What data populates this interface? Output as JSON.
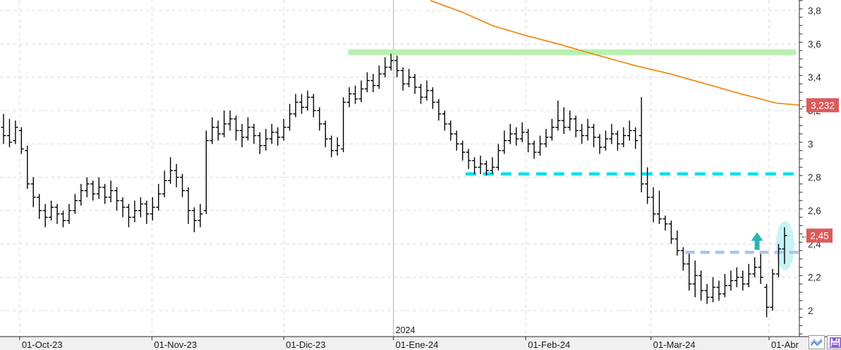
{
  "chart_data": {
    "type": "ohlc_bar",
    "title": "",
    "xlabel": "",
    "ylabel": "",
    "x_ticks": [
      {
        "label": "01-Oct-23",
        "index": 2.7
      },
      {
        "label": "01-Nov-23",
        "index": 24.9
      },
      {
        "label": "01-Dic-23",
        "index": 47.0
      },
      {
        "label": "01-Ene-24",
        "index": 65.4
      },
      {
        "label": "01-Feb-24",
        "index": 87.6
      },
      {
        "label": "01-Mar-24",
        "index": 108.6
      },
      {
        "label": "01-Abr",
        "index": 128.4
      }
    ],
    "year_divider": {
      "label": "2024",
      "index": 65.4
    },
    "y_ticks": [
      {
        "label": "3,8",
        "value": 3.8
      },
      {
        "label": "3,6",
        "value": 3.6
      },
      {
        "label": "3,4",
        "value": 3.4
      },
      {
        "label": "3,2",
        "value": 3.2
      },
      {
        "label": "3",
        "value": 3.0
      },
      {
        "label": "2,8",
        "value": 2.8
      },
      {
        "label": "2,6",
        "value": 2.6
      },
      {
        "label": "2,4",
        "value": 2.4
      },
      {
        "label": "2,2",
        "value": 2.2
      },
      {
        "label": "2",
        "value": 2.0
      }
    ],
    "y_minor_step": 0.05,
    "y_range": [
      1.86,
      3.86
    ],
    "grid": true,
    "bars_ohlc": [
      [
        3.1,
        3.18,
        3.0,
        3.05
      ],
      [
        3.05,
        3.15,
        2.98,
        3.01
      ],
      [
        3.02,
        3.14,
        3.0,
        3.1
      ],
      [
        3.08,
        3.1,
        2.94,
        2.97
      ],
      [
        2.96,
        2.99,
        2.73,
        2.76
      ],
      [
        2.76,
        2.8,
        2.62,
        2.68
      ],
      [
        2.68,
        2.7,
        2.55,
        2.6
      ],
      [
        2.6,
        2.64,
        2.5,
        2.56
      ],
      [
        2.56,
        2.66,
        2.54,
        2.62
      ],
      [
        2.62,
        2.64,
        2.52,
        2.58
      ],
      [
        2.58,
        2.6,
        2.5,
        2.54
      ],
      [
        2.54,
        2.64,
        2.52,
        2.6
      ],
      [
        2.6,
        2.7,
        2.58,
        2.66
      ],
      [
        2.66,
        2.76,
        2.63,
        2.72
      ],
      [
        2.72,
        2.8,
        2.68,
        2.76
      ],
      [
        2.76,
        2.78,
        2.66,
        2.7
      ],
      [
        2.7,
        2.8,
        2.67,
        2.74
      ],
      [
        2.74,
        2.76,
        2.64,
        2.68
      ],
      [
        2.68,
        2.78,
        2.65,
        2.72
      ],
      [
        2.72,
        2.74,
        2.6,
        2.66
      ],
      [
        2.66,
        2.68,
        2.56,
        2.62
      ],
      [
        2.62,
        2.64,
        2.5,
        2.56
      ],
      [
        2.56,
        2.66,
        2.53,
        2.6
      ],
      [
        2.6,
        2.68,
        2.56,
        2.64
      ],
      [
        2.64,
        2.66,
        2.52,
        2.58
      ],
      [
        2.58,
        2.68,
        2.54,
        2.62
      ],
      [
        2.62,
        2.76,
        2.6,
        2.7
      ],
      [
        2.7,
        2.84,
        2.68,
        2.78
      ],
      [
        2.78,
        2.92,
        2.76,
        2.84
      ],
      [
        2.84,
        2.88,
        2.74,
        2.8
      ],
      [
        2.8,
        2.82,
        2.68,
        2.72
      ],
      [
        2.72,
        2.74,
        2.52,
        2.6
      ],
      [
        2.6,
        2.62,
        2.47,
        2.54
      ],
      [
        2.54,
        2.64,
        2.5,
        2.58
      ],
      [
        2.6,
        3.08,
        2.58,
        3.02
      ],
      [
        3.02,
        3.16,
        3.0,
        3.1
      ],
      [
        3.1,
        3.14,
        3.02,
        3.06
      ],
      [
        3.06,
        3.2,
        3.04,
        3.12
      ],
      [
        3.12,
        3.2,
        3.08,
        3.15
      ],
      [
        3.15,
        3.17,
        3.02,
        3.08
      ],
      [
        3.08,
        3.12,
        2.98,
        3.04
      ],
      [
        3.04,
        3.16,
        3.02,
        3.1
      ],
      [
        3.1,
        3.12,
        3.0,
        3.05
      ],
      [
        3.05,
        3.07,
        2.94,
        2.99
      ],
      [
        2.99,
        3.09,
        2.96,
        3.03
      ],
      [
        3.03,
        3.12,
        3.0,
        3.07
      ],
      [
        3.07,
        3.1,
        2.99,
        3.04
      ],
      [
        3.04,
        3.15,
        3.02,
        3.1
      ],
      [
        3.1,
        3.24,
        3.08,
        3.18
      ],
      [
        3.18,
        3.3,
        3.16,
        3.25
      ],
      [
        3.25,
        3.3,
        3.18,
        3.22
      ],
      [
        3.22,
        3.32,
        3.2,
        3.28
      ],
      [
        3.28,
        3.3,
        3.16,
        3.2
      ],
      [
        3.2,
        3.22,
        3.08,
        3.12
      ],
      [
        3.12,
        3.14,
        2.98,
        3.03
      ],
      [
        3.03,
        3.05,
        2.92,
        2.96
      ],
      [
        2.96,
        3.04,
        2.93,
        2.99
      ],
      [
        2.97,
        3.28,
        2.95,
        3.25
      ],
      [
        3.25,
        3.34,
        3.22,
        3.3
      ],
      [
        3.3,
        3.35,
        3.24,
        3.27
      ],
      [
        3.27,
        3.38,
        3.25,
        3.33
      ],
      [
        3.33,
        3.43,
        3.31,
        3.38
      ],
      [
        3.38,
        3.42,
        3.31,
        3.35
      ],
      [
        3.35,
        3.47,
        3.33,
        3.42
      ],
      [
        3.42,
        3.52,
        3.4,
        3.46
      ],
      [
        3.46,
        3.54,
        3.44,
        3.5
      ],
      [
        3.5,
        3.53,
        3.4,
        3.44
      ],
      [
        3.44,
        3.46,
        3.32,
        3.36
      ],
      [
        3.36,
        3.45,
        3.34,
        3.4
      ],
      [
        3.4,
        3.42,
        3.3,
        3.34
      ],
      [
        3.34,
        3.36,
        3.24,
        3.28
      ],
      [
        3.28,
        3.38,
        3.26,
        3.32
      ],
      [
        3.32,
        3.34,
        3.21,
        3.25
      ],
      [
        3.25,
        3.27,
        3.14,
        3.18
      ],
      [
        3.18,
        3.2,
        3.08,
        3.12
      ],
      [
        3.12,
        3.14,
        3.02,
        3.06
      ],
      [
        3.06,
        3.08,
        2.96,
        3.0
      ],
      [
        3.0,
        3.02,
        2.9,
        2.95
      ],
      [
        2.95,
        2.97,
        2.85,
        2.9
      ],
      [
        2.9,
        2.92,
        2.82,
        2.86
      ],
      [
        2.86,
        2.93,
        2.82,
        2.88
      ],
      [
        2.88,
        2.9,
        2.81,
        2.84
      ],
      [
        2.84,
        2.92,
        2.82,
        2.86
      ],
      [
        2.86,
        3.0,
        2.84,
        2.96
      ],
      [
        2.96,
        3.08,
        2.94,
        3.02
      ],
      [
        3.02,
        3.12,
        3.0,
        3.06
      ],
      [
        3.06,
        3.1,
        2.99,
        3.03
      ],
      [
        3.03,
        3.13,
        3.01,
        3.07
      ],
      [
        3.07,
        3.09,
        2.95,
        3.0
      ],
      [
        3.0,
        3.02,
        2.91,
        2.95
      ],
      [
        2.95,
        3.05,
        2.93,
        3.0
      ],
      [
        3.0,
        3.09,
        2.98,
        3.04
      ],
      [
        3.04,
        3.15,
        3.02,
        3.1
      ],
      [
        3.1,
        3.26,
        3.08,
        3.14
      ],
      [
        3.14,
        3.22,
        3.06,
        3.1
      ],
      [
        3.1,
        3.2,
        3.08,
        3.15
      ],
      [
        3.15,
        3.17,
        3.04,
        3.08
      ],
      [
        3.08,
        3.12,
        3.0,
        3.05
      ],
      [
        3.05,
        3.15,
        3.02,
        3.1
      ],
      [
        3.1,
        3.12,
        2.98,
        3.04
      ],
      [
        3.04,
        3.06,
        2.94,
        2.98
      ],
      [
        2.98,
        3.08,
        2.96,
        3.03
      ],
      [
        3.03,
        3.12,
        3.0,
        3.06
      ],
      [
        3.06,
        3.08,
        2.96,
        3.0
      ],
      [
        3.0,
        3.1,
        2.98,
        3.05
      ],
      [
        3.05,
        3.14,
        3.02,
        3.08
      ],
      [
        3.08,
        3.1,
        2.97,
        3.02
      ],
      [
        3.05,
        3.28,
        2.71,
        2.76
      ],
      [
        2.76,
        2.86,
        2.64,
        2.68
      ],
      [
        2.68,
        2.74,
        2.53,
        2.58
      ],
      [
        2.58,
        2.72,
        2.52,
        2.55
      ],
      [
        2.55,
        2.57,
        2.48,
        2.52
      ],
      [
        2.52,
        2.54,
        2.4,
        2.43
      ],
      [
        2.43,
        2.48,
        2.33,
        2.36
      ],
      [
        2.36,
        2.38,
        2.24,
        2.28
      ],
      [
        2.28,
        2.34,
        2.12,
        2.16
      ],
      [
        2.16,
        2.3,
        2.08,
        2.21
      ],
      [
        2.21,
        2.24,
        2.06,
        2.12
      ],
      [
        2.12,
        2.16,
        2.04,
        2.08
      ],
      [
        2.08,
        2.2,
        2.05,
        2.14
      ],
      [
        2.14,
        2.18,
        2.06,
        2.1
      ],
      [
        2.1,
        2.22,
        2.08,
        2.15
      ],
      [
        2.15,
        2.24,
        2.12,
        2.18
      ],
      [
        2.18,
        2.26,
        2.14,
        2.2
      ],
      [
        2.2,
        2.24,
        2.12,
        2.16
      ],
      [
        2.16,
        2.28,
        2.14,
        2.22
      ],
      [
        2.22,
        2.32,
        2.2,
        2.26
      ],
      [
        2.26,
        2.34,
        2.16,
        2.2
      ],
      [
        2.14,
        2.16,
        1.96,
        2.02
      ],
      [
        2.02,
        2.25,
        2.0,
        2.22
      ],
      [
        2.22,
        2.4,
        2.2,
        2.37
      ],
      [
        2.37,
        2.5,
        2.28,
        2.45
      ]
    ],
    "overlays": {
      "moving_average": {
        "name": "descending-ma-line",
        "color": "#ee8c1a",
        "points": [
          [
            71.6,
            3.86
          ],
          [
            77.0,
            3.79
          ],
          [
            82.0,
            3.71
          ],
          [
            87.6,
            3.65
          ],
          [
            93.0,
            3.6
          ],
          [
            98.8,
            3.54
          ],
          [
            105.9,
            3.47
          ],
          [
            111.8,
            3.42
          ],
          [
            117.8,
            3.36
          ],
          [
            123.7,
            3.3
          ],
          [
            129.6,
            3.245
          ],
          [
            133.6,
            3.232
          ]
        ]
      },
      "resistance_band": {
        "price": 3.55,
        "from_index": 57.8,
        "to_index": 132.9,
        "color": "#b6f1b0",
        "thickness": 8
      },
      "support_line_cyan": {
        "price": 2.82,
        "from_index": 77.5,
        "to_index": 133.5,
        "color": "#00dff0",
        "style": "dashed"
      },
      "support_line_blue": {
        "price": 2.35,
        "from_index": 114.4,
        "to_index": 133.5,
        "color": "#a9c6e9",
        "style": "dashed"
      },
      "up_arrow": {
        "index": 126.4,
        "price": 2.415,
        "color": "#2ab5ac"
      },
      "highlight_ellipse": {
        "index": 131.1,
        "price": 2.39,
        "rx": 13,
        "ry": 35,
        "color": "#c9f3f6"
      }
    },
    "price_labels": [
      {
        "text": "3,232",
        "value": 3.232,
        "bg": "#dc5a5a",
        "fg": "#ffffff"
      },
      {
        "text": "2,45",
        "value": 2.45,
        "bg": "#dc5a5a",
        "fg": "#ffffff"
      }
    ]
  },
  "colors": {
    "grid": "#dcdcdc",
    "axis": "#4a4a4a",
    "bar": "#000000",
    "tick_text": "#2b2b2b",
    "date_text": "#1a1a1a",
    "year_line": "#c6c6c6",
    "bottom_strip_bg": "#f0f0f0"
  },
  "toolbar": {
    "zigzag_button": "zigzag-chart-tool",
    "save_button": "save-chart"
  }
}
